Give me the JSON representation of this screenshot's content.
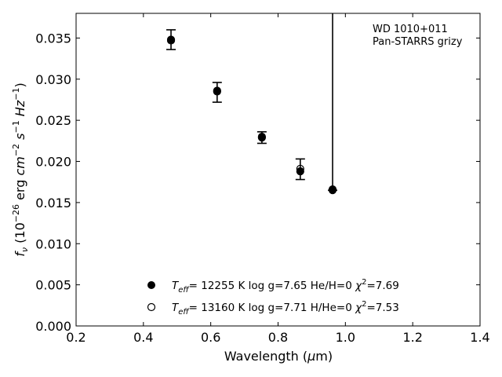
{
  "chart_data": {
    "type": "scatter",
    "title": "",
    "xlabel_text": "Wavelength (",
    "xlabel_mu": "μ",
    "xlabel_unit": "m)",
    "xlim": [
      0.2,
      1.4
    ],
    "ylim": [
      0.0,
      0.038
    ],
    "x_ticks": [
      "0.2",
      "0.4",
      "0.6",
      "0.8",
      "1.0",
      "1.2",
      "1.4"
    ],
    "y_ticks": [
      "0.000",
      "0.005",
      "0.010",
      "0.015",
      "0.020",
      "0.025",
      "0.030",
      "0.035"
    ],
    "ylabel_html": "f_ν (10^−26 erg cm^−2 s^−1 Hz^−1)",
    "annotation": [
      "WD 1010+011",
      "Pan-STARRS grizy"
    ],
    "observed": {
      "x": [
        0.482,
        0.619,
        0.752,
        0.866,
        0.962
      ],
      "y": [
        0.0348,
        0.0284,
        0.0229,
        0.0188,
        0.0165
      ],
      "yerr_low": [
        0.0012,
        0.0012,
        0.0007,
        0.001,
        0.0
      ],
      "yerr_high": [
        0.0012,
        0.0012,
        0.0007,
        0.0015,
        null
      ]
    },
    "series": [
      {
        "name": "T_eff= 12255 K  log g=7.65  He/H=0  χ²=7.69",
        "marker": "filled-circle",
        "x": [
          0.482,
          0.619,
          0.752,
          0.866,
          0.962
        ],
        "y": [
          0.0348,
          0.0286,
          0.0229,
          0.0188,
          0.0165
        ]
      },
      {
        "name": "T_eff= 13160 K  log g=7.71  H/He=0  χ²=7.53",
        "marker": "open-circle",
        "x": [
          0.482,
          0.619,
          0.752,
          0.866,
          0.962
        ],
        "y": [
          0.0347,
          0.0285,
          0.023,
          0.0191,
          0.0166
        ]
      }
    ],
    "legend": [
      {
        "teff": "12255",
        "logg": "7.65",
        "comp": "He/H=0",
        "chi": "7.69"
      },
      {
        "teff": "13160",
        "logg": "7.71",
        "comp": "H/He=0",
        "chi": "7.53"
      }
    ]
  }
}
